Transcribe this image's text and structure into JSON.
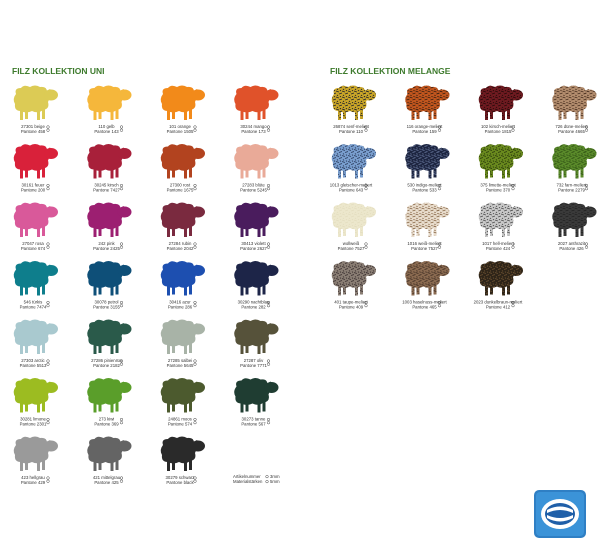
{
  "sections": [
    {
      "title": "FILZ KOLLEKTION UNI",
      "items": [
        {
          "name": "27301 beige",
          "pantone": "Pantone 458",
          "color": "#dccb55"
        },
        {
          "name": "110 gelb",
          "pantone": "Pantone 143",
          "color": "#f5b73b"
        },
        {
          "name": "101 orange",
          "pantone": "Pantone 1505",
          "color": "#f28a1a"
        },
        {
          "name": "30244 mango",
          "pantone": "Pantone 173",
          "color": "#e0522a"
        },
        {
          "name": "30161 feuer",
          "pantone": "Pantone 200",
          "color": "#d9213a"
        },
        {
          "name": "30245 kirsch",
          "pantone": "Pantone 7427",
          "color": "#a8203a"
        },
        {
          "name": "27300 rost",
          "pantone": "Pantone 1675",
          "color": "#b2431f"
        },
        {
          "name": "27283 blüte",
          "pantone": "Pantone 5245",
          "color": "#e9aa98"
        },
        {
          "name": "27047 rosa",
          "pantone": "Pantone 674",
          "color": "#d9599a"
        },
        {
          "name": "242 pink",
          "pantone": "Pantone 2425",
          "color": "#9c1f71"
        },
        {
          "name": "27284 rubin",
          "pantone": "Pantone 2042",
          "color": "#7a2a3f"
        },
        {
          "name": "30413 violett",
          "pantone": "Pantone 2627",
          "color": "#4a1c5d"
        },
        {
          "name": "546 türkis",
          "pantone": "Pantone 7474",
          "color": "#0e7e8c"
        },
        {
          "name": "30078 petrol",
          "pantone": "Pantone 3155",
          "color": "#0e4f78"
        },
        {
          "name": "30416 azur",
          "pantone": "Pantone 286",
          "color": "#1d4fb0"
        },
        {
          "name": "30290 nachtblau",
          "pantone": "Pantone 282",
          "color": "#1d2548"
        },
        {
          "name": "27303 arctic",
          "pantone": "Pantone 5513",
          "color": "#a9c9cf"
        },
        {
          "name": "27286 pinienrün",
          "pantone": "Pantone 2182",
          "color": "#2a5a4a"
        },
        {
          "name": "27285 salbei",
          "pantone": "Pantone 5645",
          "color": "#a8b3a7"
        },
        {
          "name": "27287 oliv",
          "pantone": "Pantone 7771",
          "color": "#56523a"
        },
        {
          "name": "30281 limone",
          "pantone": "Pantone 2301",
          "color": "#9cbc21"
        },
        {
          "name": "273 kiwi",
          "pantone": "Pantone 369",
          "color": "#5a9e2a"
        },
        {
          "name": "24861 moos",
          "pantone": "Pantone 574",
          "color": "#4c5a2e"
        },
        {
          "name": "30273 tanne",
          "pantone": "Pantone 567",
          "color": "#1f3d32"
        },
        {
          "name": "423 hellgrau",
          "pantone": "Pantone 429",
          "color": "#9a9a9a"
        },
        {
          "name": "421 mittelgrau",
          "pantone": "Pantone 425",
          "color": "#646464"
        },
        {
          "name": "30279 schwarz",
          "pantone": "Pantone black",
          "color": "#2a2a2a"
        }
      ]
    },
    {
      "title": "FILZ KOLLEKTION MELANGE",
      "items": [
        {
          "name": "26874 senf-meliert",
          "pantone": "Pantone 110",
          "color": "#c9a528",
          "fleck": "#2a2a2a"
        },
        {
          "name": "116 orange-meliert",
          "pantone": "Pantone 159",
          "color": "#c2561e",
          "fleck": "#3a2010"
        },
        {
          "name": "102 kirsch-meliert",
          "pantone": "Pantone 1815",
          "color": "#6e1a20",
          "fleck": "#2a0a0a"
        },
        {
          "name": "726 düne-meliert",
          "pantone": "Pantone 4665",
          "color": "#b38d6e",
          "fleck": "#4a3020"
        },
        {
          "name": "1013 gletscher-meliert",
          "pantone": "Pantone 643",
          "color": "#7a9fcf",
          "fleck": "#2a3a5a"
        },
        {
          "name": "530 indigo-meliert",
          "pantone": "Pantone 533",
          "color": "#1d2540",
          "fleck": "#6a7aa0"
        },
        {
          "name": "375 limette-meliert",
          "pantone": "Pantone 370",
          "color": "#6a8a1e",
          "fleck": "#2a3a0a"
        },
        {
          "name": "732 farn-meliert",
          "pantone": "Pantone 2279",
          "color": "#5a8a2a",
          "fleck": "#2a4a10"
        },
        {
          "name": "wollweiß",
          "pantone": "Pantone 7527",
          "color": "#ece7cc",
          "fleck": "#e4dec0"
        },
        {
          "name": "1016 weiß-meliert",
          "pantone": "Pantone 7527",
          "color": "#e8dccc",
          "fleck": "#8a6a4a"
        },
        {
          "name": "1017 hell-meliert",
          "pantone": "Pantone 424",
          "color": "#c8c8c8",
          "fleck": "#555555"
        },
        {
          "name": "2027 anthrazit",
          "pantone": "Pantone 426",
          "color": "#3a3a3a",
          "fleck": "#222222"
        },
        {
          "name": "401 taupe-meliert",
          "pantone": "Pantone 409",
          "color": "#8a7e74",
          "fleck": "#3a3030"
        },
        {
          "name": "1003 haselnuss-meliert",
          "pantone": "Pantone 465",
          "color": "#8a6a50",
          "fleck": "#3a2a20"
        },
        {
          "name": "2023 dunkelbraun-meliert",
          "pantone": "Pantone 412",
          "color": "#2e2418",
          "fleck": "#6a5030"
        }
      ]
    }
  ],
  "legend": [
    {
      "label": "Artikelnummer",
      "size": "3mm"
    },
    {
      "label": "Materialstärken",
      "size": "5mm"
    }
  ]
}
